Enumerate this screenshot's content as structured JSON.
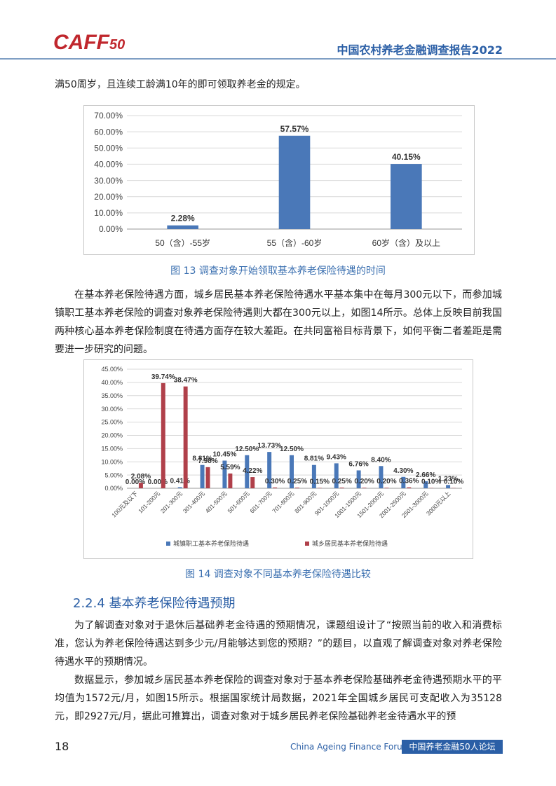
{
  "header": {
    "logo": "CAFF",
    "logo_sub": "50",
    "title": "中国农村养老金融调查报告2022"
  },
  "paragraphs": [
    "满50周岁，且连续工龄满10年的即可领取养老金的规定。",
    "在基本养老保险待遇方面，城乡居民基本养老保险待遇水平基本集中在每月300元以下，而参加城镇职工基本养老保险的调查对象养老保险待遇则大都在300元以上，如图14所示。总体上反映目前我国两种核心基本养老保险制度在待遇方面存在较大差距。在共同富裕目标背景下，如何平衡二者差距是需要进一步研究的问题。",
    "为了解调查对象对于退休后基础养老金待遇的预期情况，课题组设计了“按照当前的收入和消费标准，您认为养老保险待遇达到多少元/月能够达到您的预期？”的题目，以直观了解调查对象对养老保险待遇水平的预期情况。",
    "数据显示，参加城乡居民基本养老保险的调查对象对于基本养老保险基础养老金待遇预期水平的平均值为1572元/月，如图15所示。根据国家统计局数据，2021年全国城乡居民可支配收入为35128元，即2927元/月，据此可推算出，调查对象对于城乡居民养老保险基础养老金待遇水平的预"
  ],
  "section": "2.2.4 基本养老保险待遇预期",
  "chart_data": [
    {
      "type": "bar",
      "title": "图 13  调查对象开始领取基本养老保险待遇的时间",
      "categories": [
        "50（含）-55岁",
        "55（含）-60岁",
        "60岁（含）及以上"
      ],
      "values": [
        2.28,
        57.57,
        40.15
      ],
      "value_labels": [
        "2.28%",
        "57.57%",
        "40.15%"
      ],
      "color": "#4a78b8",
      "grid": true,
      "ylim": [
        0,
        70
      ],
      "yticks": [
        {
          "value": 0,
          "label": "0.00%"
        },
        {
          "value": 10,
          "label": "10.00%"
        },
        {
          "value": 20,
          "label": "20.00%"
        },
        {
          "value": 30,
          "label": "30.00%"
        },
        {
          "value": 40,
          "label": "40.00%"
        },
        {
          "value": 50,
          "label": "50.00%"
        },
        {
          "value": 60,
          "label": "60.00%"
        },
        {
          "value": 70,
          "label": "70.00%"
        }
      ]
    },
    {
      "type": "bar",
      "title": "图 14  调查对象不同基本养老保险待遇比较",
      "categories": [
        "100元及以下",
        "101-200元",
        "201-300元",
        "301-400元",
        "401-500元",
        "501-600元",
        "601-700元",
        "701-800元",
        "801-900元",
        "901-1000元",
        "1001-1500元",
        "1501-2000元",
        "2001-2500元",
        "2501-3000元",
        "3000元以上"
      ],
      "series": [
        {
          "name": "城镇职工基本养老保险待遇",
          "color": "#4a78b8",
          "values": [
            0.0,
            0.0,
            0.41,
            8.81,
            10.45,
            12.5,
            13.73,
            12.5,
            8.81,
            9.43,
            6.76,
            8.4,
            4.3,
            2.66,
            1.23
          ],
          "value_labels": [
            "0.00%",
            "0.00%",
            "0.41%",
            "8.81%",
            "10.45%",
            "12.50%",
            "13.73%",
            "12.50%",
            "8.81%",
            "9.43%",
            "6.76%",
            "8.40%",
            "4.30%",
            "2.66%",
            "1.23%"
          ]
        },
        {
          "name": "城乡居民基本养老保险待遇",
          "color": "#b0404a",
          "values": [
            2.08,
            39.74,
            38.47,
            7.98,
            5.59,
            4.22,
            0.3,
            0.25,
            0.15,
            0.25,
            0.2,
            0.2,
            0.36,
            0.1,
            0.1
          ],
          "value_labels": [
            "2.08%",
            "39.74%",
            "38.47%",
            "7.98%",
            "5.59%",
            "4.22%",
            "0.30%",
            "0.25%",
            "0.15%",
            "0.25%",
            "0.20%",
            "0.20%",
            "0.36%",
            "0.10%",
            "0.10%"
          ]
        }
      ],
      "grid": true,
      "legend": "bottom",
      "ylim": [
        0,
        45
      ],
      "yticks": [
        {
          "value": 0,
          "label": "0.00%"
        },
        {
          "value": 5,
          "label": "5.00%"
        },
        {
          "value": 10,
          "label": "10.00%"
        },
        {
          "value": 15,
          "label": "15.00%"
        },
        {
          "value": 20,
          "label": "20.00%"
        },
        {
          "value": 25,
          "label": "25.00%"
        },
        {
          "value": 30,
          "label": "30.00%"
        },
        {
          "value": 35,
          "label": "35.00%"
        },
        {
          "value": 40,
          "label": "40.00%"
        },
        {
          "value": 45,
          "label": "45.00%"
        }
      ]
    }
  ],
  "footer": {
    "page": "18",
    "forum_en": "China Ageing Finance Forum",
    "forum_cn": "中国养老金融50人论坛"
  }
}
